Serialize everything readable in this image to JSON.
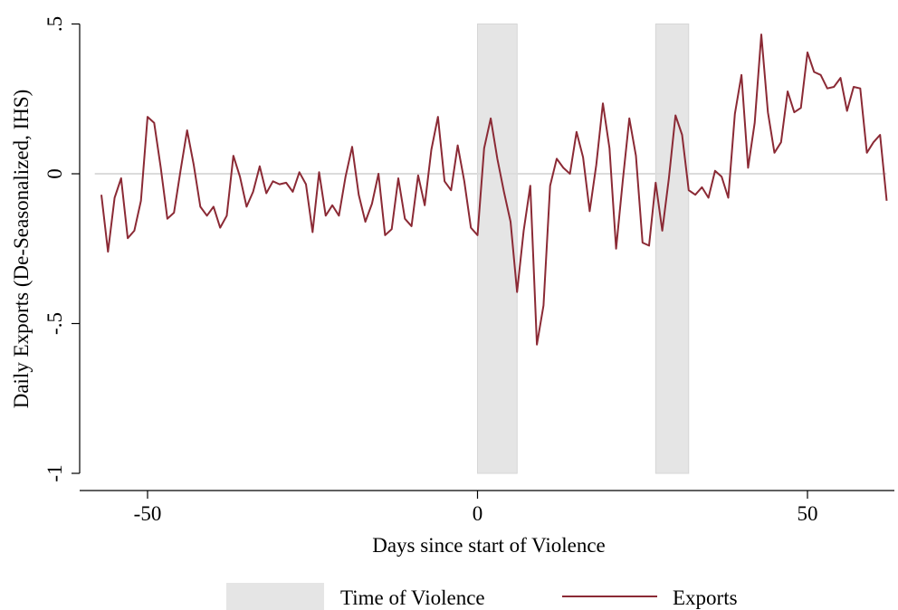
{
  "chart_data": {
    "type": "line",
    "title": "",
    "xlabel": "Days since start of Violence",
    "ylabel": "Daily Exports (De-Seasonalized, IHS)",
    "xlim": [
      -60,
      63
    ],
    "ylim": [
      -1.05,
      0.52
    ],
    "x_ticks": [
      -50,
      0,
      50
    ],
    "x_tick_labels": [
      "-50",
      "0",
      "50"
    ],
    "y_ticks": [
      -1,
      -0.5,
      0,
      0.5
    ],
    "y_tick_labels": [
      "-1",
      "-.5",
      "0",
      ".5"
    ],
    "reference_line_y": 0,
    "shaded_intervals": [
      [
        0,
        6
      ],
      [
        27,
        32
      ]
    ],
    "legend": {
      "position": "bottom",
      "entries": [
        {
          "label": "Time of Violence",
          "kind": "area",
          "color": "#e5e5e5"
        },
        {
          "label": "Exports",
          "kind": "line",
          "color": "#8b2a35"
        }
      ]
    },
    "series": [
      {
        "name": "Exports",
        "color": "#8b2a35",
        "x": [
          -57,
          -56,
          -55,
          -54,
          -53,
          -52,
          -51,
          -50,
          -49,
          -48,
          -47,
          -46,
          -45,
          -44,
          -43,
          -42,
          -41,
          -40,
          -39,
          -38,
          -37,
          -36,
          -35,
          -34,
          -33,
          -32,
          -31,
          -30,
          -29,
          -28,
          -27,
          -26,
          -25,
          -24,
          -23,
          -22,
          -21,
          -20,
          -19,
          -18,
          -17,
          -16,
          -15,
          -14,
          -13,
          -12,
          -11,
          -10,
          -9,
          -8,
          -7,
          -6,
          -5,
          -4,
          -3,
          -2,
          -1,
          0,
          1,
          2,
          3,
          4,
          5,
          6,
          7,
          8,
          9,
          10,
          11,
          12,
          13,
          14,
          15,
          16,
          17,
          18,
          19,
          20,
          21,
          22,
          23,
          24,
          25,
          26,
          27,
          28,
          29,
          30,
          31,
          32,
          33,
          34,
          35,
          36,
          37,
          38,
          39,
          40,
          41,
          42,
          43,
          44,
          45,
          46,
          47,
          48,
          49,
          50,
          51,
          52,
          53,
          54,
          55,
          56,
          57,
          58,
          59,
          60,
          61,
          62
        ],
        "values": [
          -0.07,
          -0.26,
          -0.08,
          -0.015,
          -0.215,
          -0.19,
          -0.09,
          0.19,
          0.17,
          0.02,
          -0.15,
          -0.13,
          0.01,
          0.145,
          0.03,
          -0.11,
          -0.14,
          -0.11,
          -0.18,
          -0.14,
          0.06,
          -0.01,
          -0.11,
          -0.06,
          0.025,
          -0.065,
          -0.025,
          -0.035,
          -0.03,
          -0.06,
          0.005,
          -0.035,
          -0.195,
          0.005,
          -0.14,
          -0.105,
          -0.14,
          -0.01,
          0.09,
          -0.07,
          -0.16,
          -0.1,
          0.0,
          -0.205,
          -0.185,
          -0.015,
          -0.15,
          -0.175,
          -0.005,
          -0.105,
          0.08,
          0.19,
          -0.025,
          -0.055,
          0.095,
          -0.025,
          -0.18,
          -0.205,
          0.085,
          0.185,
          0.05,
          -0.06,
          -0.16,
          -0.395,
          -0.19,
          -0.04,
          -0.57,
          -0.44,
          -0.04,
          0.05,
          0.02,
          0.0,
          0.14,
          0.055,
          -0.125,
          0.03,
          0.235,
          0.085,
          -0.25,
          -0.025,
          0.185,
          0.06,
          -0.23,
          -0.24,
          -0.03,
          -0.19,
          -0.015,
          0.195,
          0.13,
          -0.055,
          -0.07,
          -0.045,
          -0.08,
          0.01,
          -0.01,
          -0.08,
          0.2,
          0.33,
          0.02,
          0.17,
          0.465,
          0.205,
          0.07,
          0.105,
          0.275,
          0.205,
          0.22,
          0.405,
          0.34,
          0.33,
          0.285,
          0.29,
          0.32,
          0.21,
          0.29,
          0.285,
          0.07,
          0.105,
          0.13,
          -0.09
        ]
      }
    ]
  }
}
